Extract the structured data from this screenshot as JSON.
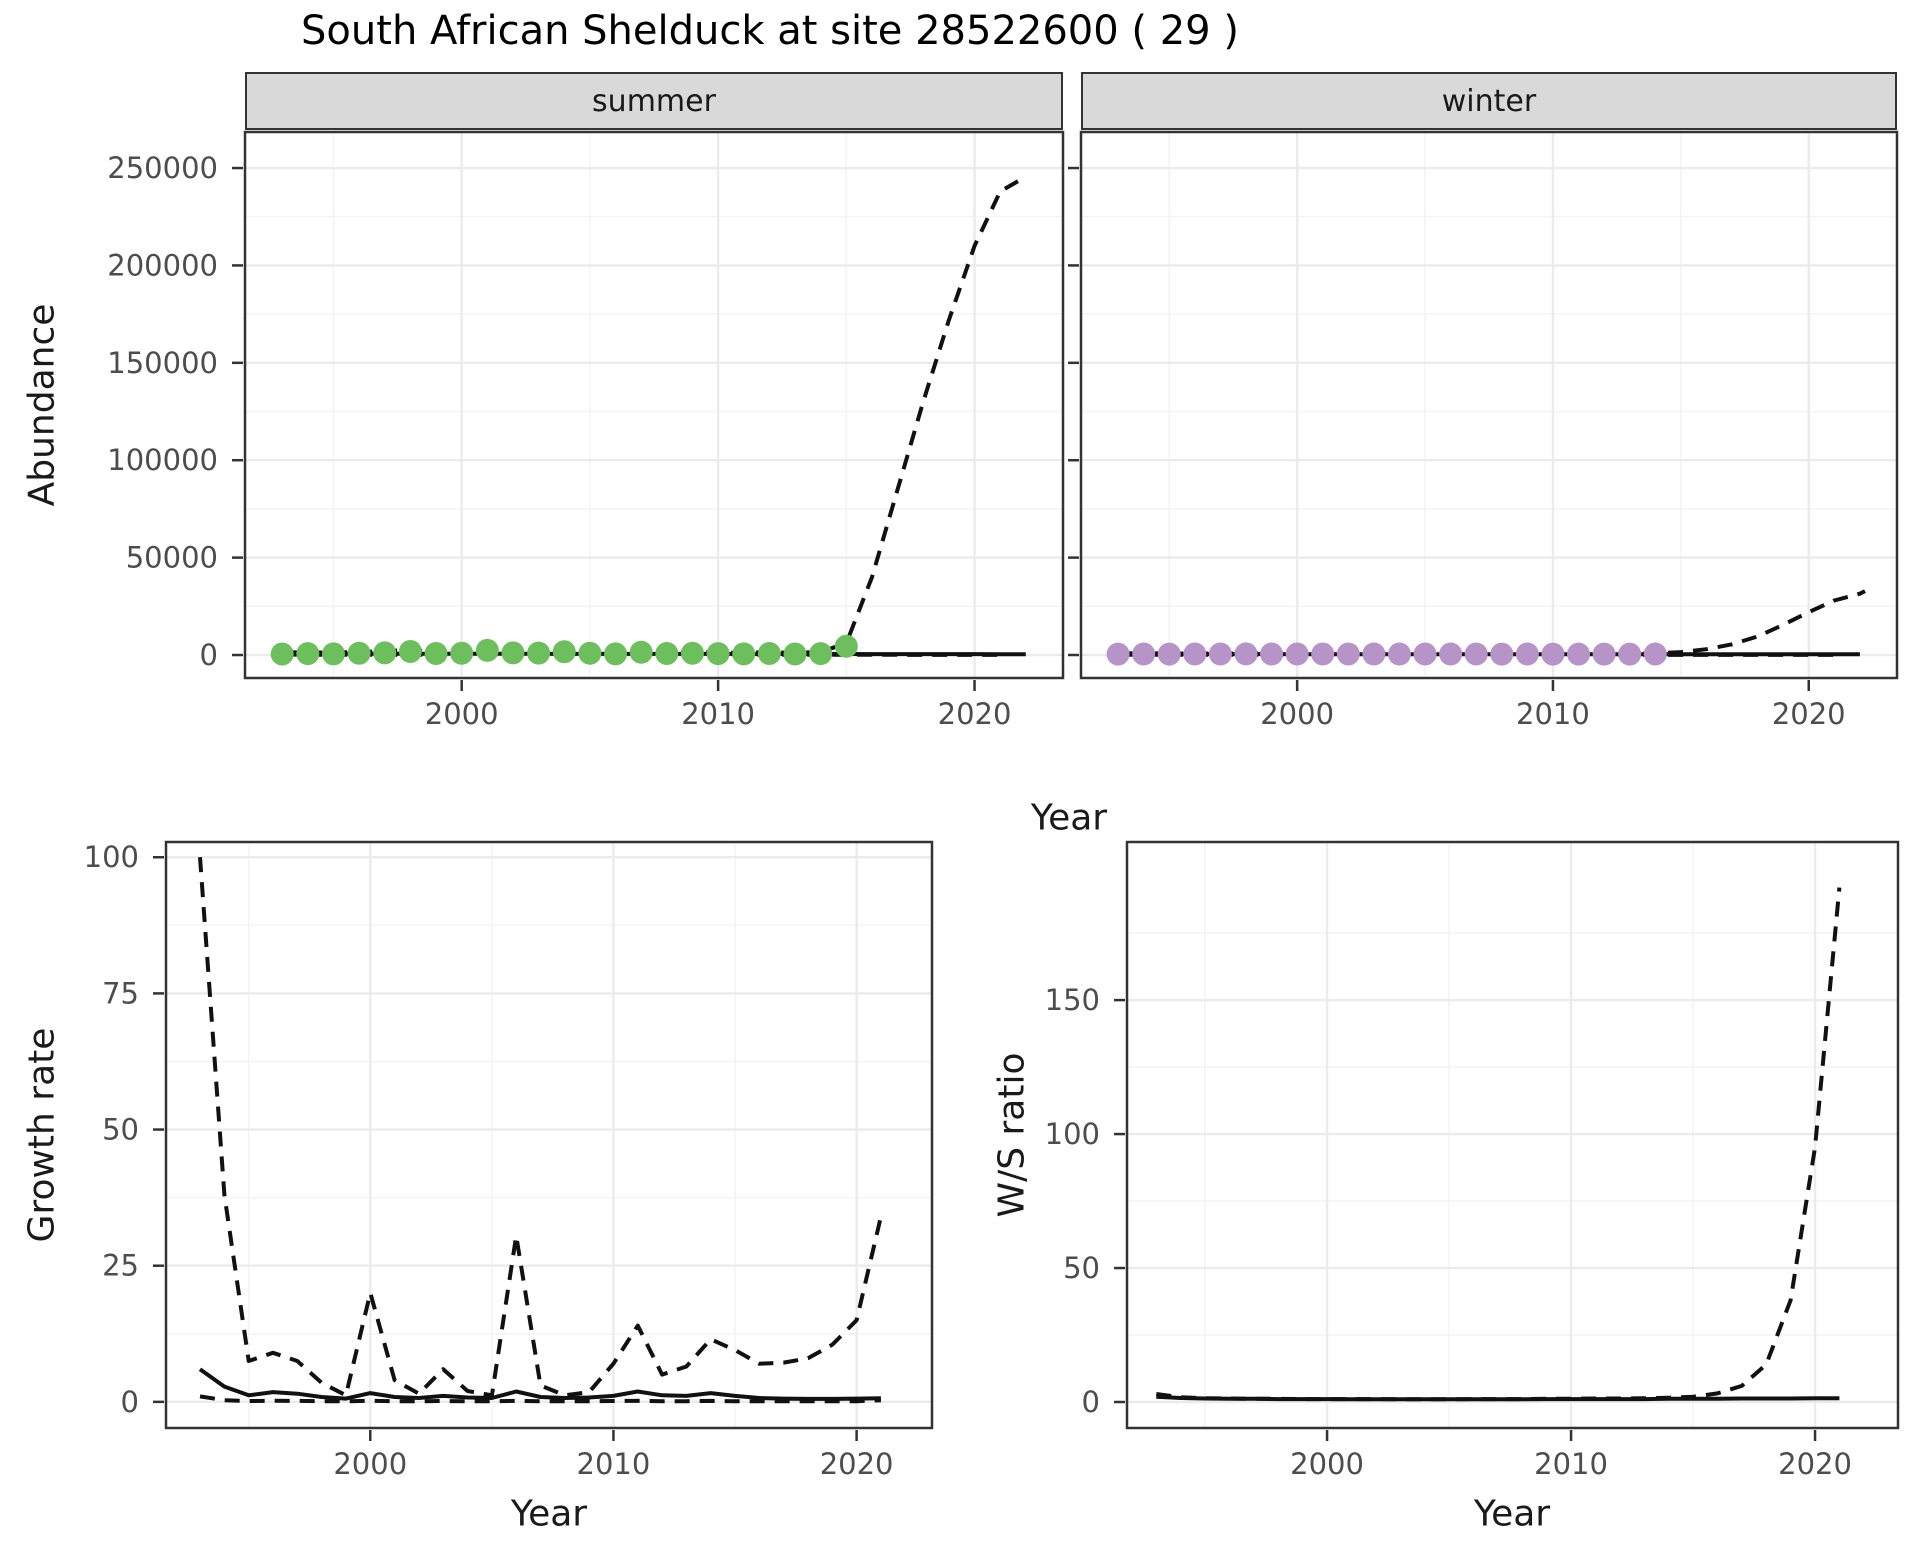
{
  "title": "South African Shelduck at site 28522600 ( 29 )",
  "colors": {
    "summer_points": "#6DBE5C",
    "winter_points": "#B794C8",
    "line": "#111111",
    "grid_major": "#EBEBEB",
    "grid_minor": "#F4F4F4",
    "strip_bg": "#D9D9D9",
    "panel_border": "#333333",
    "tick_text": "#4D4D4D"
  },
  "facets": {
    "summer": "summer",
    "winter": "winter"
  },
  "axis_labels": {
    "abundance": "Abundance",
    "year_top": "Year",
    "growth": "Growth rate",
    "ws": "W/S ratio",
    "year_bottom_left": "Year",
    "year_bottom_right": "Year"
  },
  "chart_data": [
    {
      "id": "summer",
      "type": "line",
      "title": "summer facet: abundance vs year",
      "xlabel": "Year",
      "ylabel": "Abundance",
      "xlim": [
        1991.55,
        2023.45
      ],
      "ylim": [
        -11800,
        268500
      ],
      "xticks": [
        2000,
        2010,
        2020
      ],
      "xtick_labels": [
        "2000",
        "2010",
        "2020"
      ],
      "yticks": [
        0,
        50000,
        100000,
        150000,
        200000,
        250000
      ],
      "ytick_labels": [
        "0",
        "50000",
        "100000",
        "150000",
        "200000",
        "250000"
      ],
      "minor_x": [
        1995,
        2005,
        2015
      ],
      "minor_y": [
        25000,
        75000,
        125000,
        175000,
        225000
      ],
      "show_ytick_labels": true,
      "legend": "none",
      "grid": true,
      "series": [
        {
          "name": "ci_lower",
          "style": "dashed",
          "x": [
            1993,
            1994,
            1995,
            1996,
            1997,
            1998,
            1999,
            2000,
            2001,
            2002,
            2003,
            2004,
            2005,
            2006,
            2007,
            2008,
            2009,
            2010,
            2011,
            2012,
            2013,
            2014,
            2015,
            2016,
            2017,
            2018,
            2019,
            2020,
            2021
          ],
          "y": [
            200,
            160,
            150,
            150,
            150,
            150,
            140,
            140,
            140,
            130,
            130,
            130,
            120,
            120,
            120,
            120,
            110,
            110,
            110,
            100,
            100,
            100,
            100,
            90,
            90,
            80,
            80,
            70,
            70
          ]
        },
        {
          "name": "ci_upper",
          "style": "dashed",
          "x": [
            1993,
            1994,
            1995,
            1996,
            1997,
            1998,
            1999,
            2000,
            2001,
            2002,
            2003,
            2004,
            2005,
            2006,
            2007,
            2008,
            2009,
            2010,
            2011,
            2012,
            2013,
            2014,
            2015,
            2016,
            2017,
            2018,
            2019,
            2020,
            2021,
            2021.8
          ],
          "y": [
            1400,
            1300,
            1250,
            1600,
            1900,
            2800,
            1500,
            1600,
            3600,
            1900,
            1800,
            2700,
            1600,
            1200,
            2300,
            1500,
            1600,
            1300,
            1200,
            1500,
            1100,
            1600,
            6000,
            40000,
            85000,
            130000,
            172000,
            210000,
            238000,
            244000
          ]
        },
        {
          "name": "fit",
          "style": "solid",
          "x": [
            1993,
            1994,
            1995,
            1996,
            1997,
            1998,
            1999,
            2000,
            2001,
            2002,
            2003,
            2004,
            2005,
            2006,
            2007,
            2008,
            2009,
            2010,
            2011,
            2012,
            2013,
            2014,
            2015,
            2016,
            2017,
            2018,
            2019,
            2020,
            2021,
            2022
          ],
          "y": [
            750,
            700,
            670,
            650,
            640,
            630,
            620,
            615,
            610,
            605,
            600,
            595,
            590,
            585,
            580,
            570,
            560,
            550,
            540,
            530,
            520,
            510,
            500,
            490,
            480,
            470,
            460,
            450,
            440,
            430
          ]
        },
        {
          "name": "observed",
          "style": "points",
          "color_key": "summer_points",
          "x": [
            1993,
            1994,
            1995,
            1996,
            1997,
            1998,
            1999,
            2000,
            2001,
            2002,
            2003,
            2004,
            2005,
            2006,
            2007,
            2008,
            2009,
            2010,
            2011,
            2012,
            2013,
            2014,
            2015
          ],
          "y": [
            500,
            700,
            600,
            900,
            1100,
            1800,
            800,
            900,
            2400,
            1100,
            1000,
            1700,
            900,
            600,
            1400,
            800,
            900,
            700,
            600,
            800,
            500,
            700,
            4500
          ]
        }
      ]
    },
    {
      "id": "winter",
      "type": "line",
      "title": "winter facet: abundance vs year",
      "xlabel": "Year",
      "ylabel": "Abundance",
      "xlim": [
        1991.55,
        2023.45
      ],
      "ylim": [
        -11800,
        268500
      ],
      "xticks": [
        2000,
        2010,
        2020
      ],
      "xtick_labels": [
        "2000",
        "2010",
        "2020"
      ],
      "yticks": [
        0,
        50000,
        100000,
        150000,
        200000,
        250000
      ],
      "ytick_labels": [
        "0",
        "50000",
        "100000",
        "150000",
        "200000",
        "250000"
      ],
      "minor_x": [
        1995,
        2005,
        2015
      ],
      "minor_y": [
        25000,
        75000,
        125000,
        175000,
        225000
      ],
      "show_ytick_labels": false,
      "legend": "none",
      "grid": true,
      "series": [
        {
          "name": "ci_lower",
          "style": "dashed",
          "x": [
            1993,
            1994,
            1995,
            1996,
            1997,
            1998,
            1999,
            2000,
            2001,
            2002,
            2003,
            2004,
            2005,
            2006,
            2007,
            2008,
            2009,
            2010,
            2011,
            2012,
            2013,
            2014,
            2015,
            2016,
            2017,
            2018,
            2019,
            2020,
            2021
          ],
          "y": [
            150,
            120,
            110,
            110,
            100,
            100,
            100,
            100,
            90,
            90,
            90,
            90,
            80,
            80,
            80,
            80,
            80,
            70,
            70,
            70,
            70,
            70,
            60,
            60,
            60,
            50,
            50,
            50,
            50
          ]
        },
        {
          "name": "ci_upper",
          "style": "dashed",
          "x": [
            1993,
            1994,
            1995,
            1996,
            1997,
            1998,
            1999,
            2000,
            2001,
            2002,
            2003,
            2004,
            2005,
            2006,
            2007,
            2008,
            2009,
            2010,
            2011,
            2012,
            2013,
            2014,
            2015,
            2016,
            2017,
            2018,
            2019,
            2020,
            2021,
            2022,
            2022.2
          ],
          "y": [
            900,
            850,
            820,
            800,
            800,
            800,
            780,
            780,
            770,
            770,
            760,
            760,
            750,
            750,
            750,
            740,
            740,
            730,
            730,
            730,
            720,
            800,
            1500,
            3000,
            5500,
            9500,
            15500,
            22000,
            28000,
            31500,
            32800
          ]
        },
        {
          "name": "fit",
          "style": "solid",
          "x": [
            1993,
            1994,
            1995,
            1996,
            1997,
            1998,
            1999,
            2000,
            2001,
            2002,
            2003,
            2004,
            2005,
            2006,
            2007,
            2008,
            2009,
            2010,
            2011,
            2012,
            2013,
            2014,
            2015,
            2016,
            2017,
            2018,
            2019,
            2020,
            2021,
            2022
          ],
          "y": [
            500,
            480,
            470,
            460,
            455,
            450,
            445,
            440,
            435,
            430,
            425,
            420,
            418,
            415,
            412,
            410,
            408,
            405,
            402,
            400,
            398,
            395,
            392,
            390,
            388,
            385,
            382,
            380,
            378,
            375
          ]
        },
        {
          "name": "observed",
          "style": "points",
          "color_key": "winter_points",
          "x": [
            1993,
            1994,
            1995,
            1996,
            1997,
            1998,
            1999,
            2000,
            2001,
            2002,
            2003,
            2004,
            2005,
            2006,
            2007,
            2008,
            2009,
            2010,
            2011,
            2012,
            2013,
            2014
          ],
          "y": [
            450,
            500,
            480,
            520,
            540,
            560,
            520,
            500,
            510,
            530,
            510,
            490,
            500,
            520,
            500,
            480,
            500,
            480,
            460,
            480,
            460,
            500
          ]
        }
      ]
    },
    {
      "id": "growth",
      "type": "line",
      "title": "growth rate vs year",
      "xlabel": "Year",
      "ylabel": "Growth rate",
      "xlim": [
        1991.6,
        2023.1
      ],
      "ylim": [
        -4.8,
        102.8
      ],
      "xticks": [
        2000,
        2010,
        2020
      ],
      "xtick_labels": [
        "2000",
        "2010",
        "2020"
      ],
      "yticks": [
        0,
        25,
        50,
        75,
        100
      ],
      "ytick_labels": [
        "0",
        "25",
        "50",
        "75",
        "100"
      ],
      "minor_x": [
        1995,
        2005,
        2015
      ],
      "minor_y": [
        12.5,
        37.5,
        62.5,
        87.5
      ],
      "show_ytick_labels": true,
      "legend": "none",
      "grid": true,
      "series": [
        {
          "name": "ci_lower",
          "style": "dashed",
          "x": [
            1993,
            1994,
            1995,
            1996,
            1997,
            1998,
            1999,
            2000,
            2001,
            2002,
            2003,
            2004,
            2005,
            2006,
            2007,
            2008,
            2009,
            2010,
            2011,
            2012,
            2013,
            2014,
            2015,
            2016,
            2017,
            2018,
            2019,
            2020,
            2021
          ],
          "y": [
            1,
            0.3,
            0.15,
            0.2,
            0.18,
            0.12,
            0.1,
            0.2,
            0.12,
            0.1,
            0.15,
            0.1,
            0.1,
            0.2,
            0.1,
            0.1,
            0.1,
            0.15,
            0.2,
            0.12,
            0.12,
            0.18,
            0.12,
            0.1,
            0.1,
            0.1,
            0.1,
            0.12,
            0.3
          ]
        },
        {
          "name": "ci_upper",
          "style": "dashed",
          "x": [
            1993,
            1994,
            1995,
            1996,
            1997,
            1998,
            1999,
            2000,
            2001,
            2002,
            2003,
            2004,
            2005,
            2006,
            2007,
            2008,
            2009,
            2010,
            2011,
            2012,
            2013,
            2014,
            2015,
            2016,
            2017,
            2018,
            2019,
            2020,
            2021
          ],
          "y": [
            100,
            38,
            7.5,
            9,
            7.5,
            3.5,
            1.2,
            20,
            4,
            1.5,
            6,
            2,
            1.2,
            30.5,
            3,
            1.2,
            1.8,
            7,
            14,
            5,
            6.5,
            11.5,
            9.5,
            7,
            7.2,
            8,
            10.5,
            15,
            34
          ]
        },
        {
          "name": "fit",
          "style": "solid",
          "x": [
            1993,
            1994,
            1995,
            1996,
            1997,
            1998,
            1999,
            2000,
            2001,
            2002,
            2003,
            2004,
            2005,
            2006,
            2007,
            2008,
            2009,
            2010,
            2011,
            2012,
            2013,
            2014,
            2015,
            2016,
            2017,
            2018,
            2019,
            2020,
            2021
          ],
          "y": [
            6,
            2.8,
            1.2,
            1.8,
            1.5,
            0.9,
            0.6,
            1.6,
            0.9,
            0.7,
            1.1,
            0.8,
            0.7,
            1.9,
            0.9,
            0.7,
            0.8,
            1.1,
            1.9,
            1.2,
            1.1,
            1.6,
            1.1,
            0.7,
            0.6,
            0.55,
            0.55,
            0.6,
            0.65
          ]
        }
      ]
    },
    {
      "id": "ws",
      "type": "line",
      "title": "winter/summer ratio vs year",
      "xlabel": "Year",
      "ylabel": "W/S ratio",
      "xlim": [
        1991.8,
        2023.4
      ],
      "ylim": [
        -9.7,
        209
      ],
      "xticks": [
        2000,
        2010,
        2020
      ],
      "xtick_labels": [
        "2000",
        "2010",
        "2020"
      ],
      "yticks": [
        0,
        50,
        100,
        150
      ],
      "ytick_labels": [
        "0",
        "50",
        "100",
        "150"
      ],
      "minor_x": [
        1995,
        2005,
        2015
      ],
      "minor_y": [
        25,
        75,
        125,
        175
      ],
      "show_ytick_labels": true,
      "legend": "none",
      "grid": true,
      "series": [
        {
          "name": "ratio_upper",
          "style": "dashed",
          "x": [
            1993,
            1994,
            1995,
            1996,
            1997,
            1998,
            1999,
            2000,
            2001,
            2002,
            2003,
            2004,
            2005,
            2006,
            2007,
            2008,
            2009,
            2010,
            2011,
            2012,
            2013,
            2014,
            2015,
            2016,
            2017,
            2018,
            2019,
            2020,
            2021
          ],
          "y": [
            3,
            1.8,
            1.4,
            1.3,
            1.2,
            1.2,
            1.1,
            1.1,
            1.1,
            1.1,
            1.0,
            1.0,
            1.0,
            1.1,
            1.1,
            1.1,
            1.2,
            1.2,
            1.3,
            1.3,
            1.4,
            1.6,
            2.0,
            3.2,
            6,
            14,
            38,
            95,
            192
          ]
        },
        {
          "name": "ratio_fit",
          "style": "solid",
          "x": [
            1993,
            1994,
            1995,
            1996,
            1997,
            1998,
            1999,
            2000,
            2001,
            2002,
            2003,
            2004,
            2005,
            2006,
            2007,
            2008,
            2009,
            2010,
            2011,
            2012,
            2013,
            2014,
            2015,
            2016,
            2017,
            2018,
            2019,
            2020,
            2021
          ],
          "y": [
            2,
            1.5,
            1.3,
            1.2,
            1.2,
            1.1,
            1.1,
            1.1,
            1.0,
            1.0,
            1.0,
            1.0,
            1.0,
            1.0,
            1.0,
            1.0,
            1.1,
            1.1,
            1.1,
            1.1,
            1.1,
            1.2,
            1.2,
            1.2,
            1.3,
            1.3,
            1.3,
            1.4,
            1.4
          ]
        }
      ]
    }
  ]
}
